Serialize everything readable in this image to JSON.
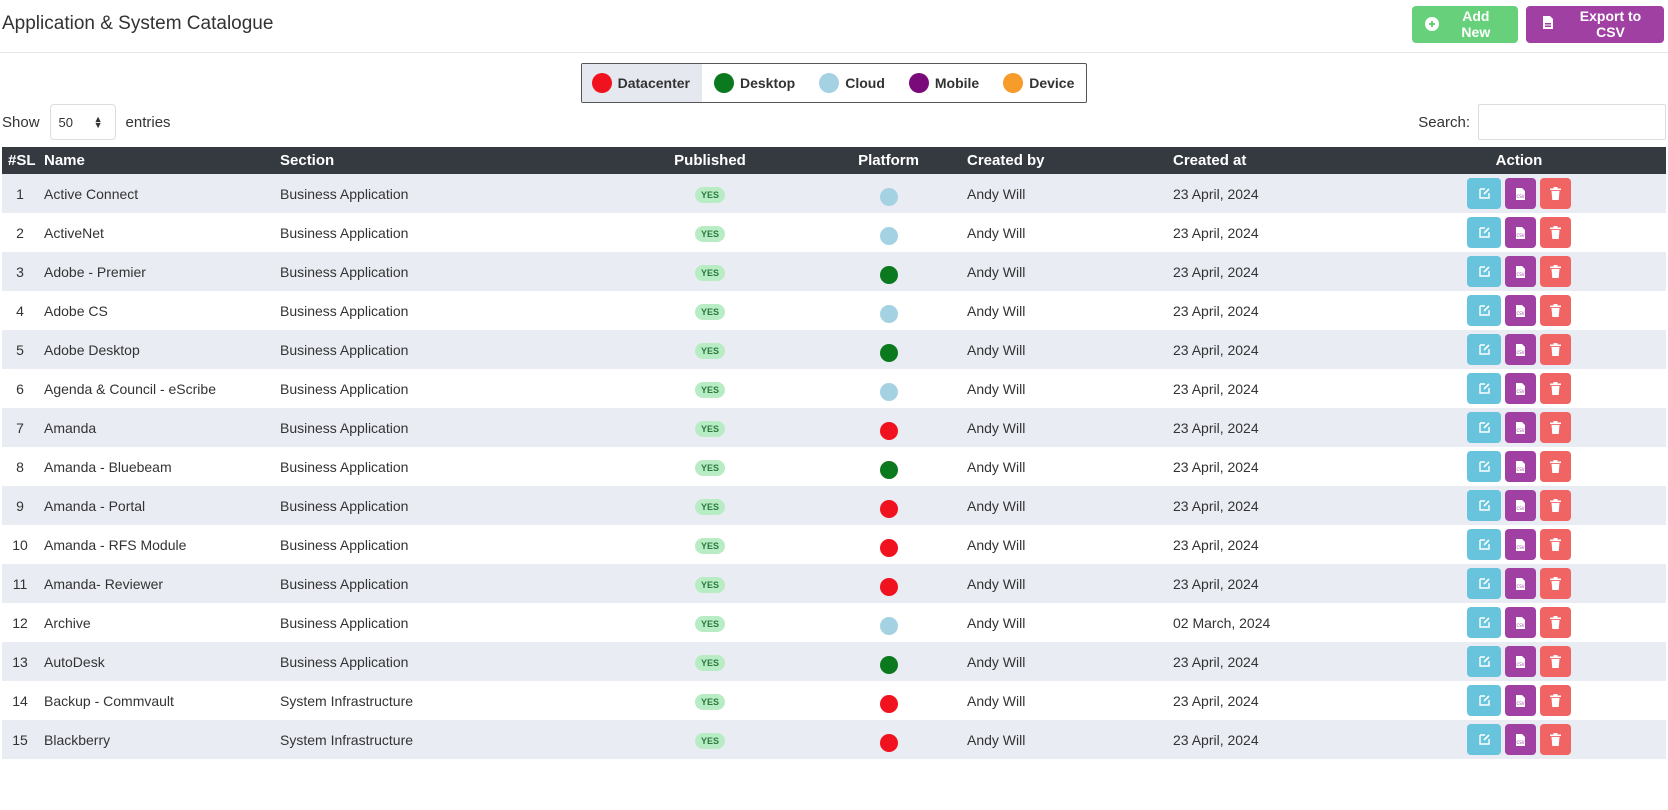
{
  "header": {
    "title": "Application & System Catalogue",
    "add_label": "Add New",
    "export_label": "Export to CSV",
    "add_color": "#66d17a",
    "export_color": "#a040a3"
  },
  "legend": [
    {
      "label": "Datacenter",
      "color": "#f0121f",
      "active": true
    },
    {
      "label": "Desktop",
      "color": "#0b7a1f",
      "active": false
    },
    {
      "label": "Cloud",
      "color": "#a4d2e2",
      "active": false
    },
    {
      "label": "Mobile",
      "color": "#7a0a7a",
      "active": false
    },
    {
      "label": "Device",
      "color": "#f79b2b",
      "active": false
    }
  ],
  "controls": {
    "show_label": "Show",
    "entries_value": "50",
    "entries_label": "entries",
    "search_label": "Search:",
    "search_value": ""
  },
  "table": {
    "headers": [
      "#SL",
      "Name",
      "Section",
      "Published",
      "Platform",
      "Created by",
      "Created at",
      "Action"
    ],
    "rows": [
      {
        "sl": "1",
        "name": "Active Connect",
        "section": "Business Application",
        "published": "YES",
        "platform": "Cloud",
        "created_by": "Andy Will",
        "created_at": "23 April, 2024"
      },
      {
        "sl": "2",
        "name": "ActiveNet",
        "section": "Business Application",
        "published": "YES",
        "platform": "Cloud",
        "created_by": "Andy Will",
        "created_at": "23 April, 2024"
      },
      {
        "sl": "3",
        "name": "Adobe - Premier",
        "section": "Business Application",
        "published": "YES",
        "platform": "Desktop",
        "created_by": "Andy Will",
        "created_at": "23 April, 2024"
      },
      {
        "sl": "4",
        "name": "Adobe CS",
        "section": "Business Application",
        "published": "YES",
        "platform": "Cloud",
        "created_by": "Andy Will",
        "created_at": "23 April, 2024"
      },
      {
        "sl": "5",
        "name": "Adobe Desktop",
        "section": "Business Application",
        "published": "YES",
        "platform": "Desktop",
        "created_by": "Andy Will",
        "created_at": "23 April, 2024"
      },
      {
        "sl": "6",
        "name": "Agenda & Council - eScribe",
        "section": "Business Application",
        "published": "YES",
        "platform": "Cloud",
        "created_by": "Andy Will",
        "created_at": "23 April, 2024"
      },
      {
        "sl": "7",
        "name": "Amanda",
        "section": "Business Application",
        "published": "YES",
        "platform": "Datacenter",
        "created_by": "Andy Will",
        "created_at": "23 April, 2024"
      },
      {
        "sl": "8",
        "name": "Amanda - Bluebeam",
        "section": "Business Application",
        "published": "YES",
        "platform": "Desktop",
        "created_by": "Andy Will",
        "created_at": "23 April, 2024"
      },
      {
        "sl": "9",
        "name": "Amanda - Portal",
        "section": "Business Application",
        "published": "YES",
        "platform": "Datacenter",
        "created_by": "Andy Will",
        "created_at": "23 April, 2024"
      },
      {
        "sl": "10",
        "name": "Amanda - RFS Module",
        "section": "Business Application",
        "published": "YES",
        "platform": "Datacenter",
        "created_by": "Andy Will",
        "created_at": "23 April, 2024"
      },
      {
        "sl": "11",
        "name": "Amanda- Reviewer",
        "section": "Business Application",
        "published": "YES",
        "platform": "Datacenter",
        "created_by": "Andy Will",
        "created_at": "23 April, 2024"
      },
      {
        "sl": "12",
        "name": "Archive",
        "section": "Business Application",
        "published": "YES",
        "platform": "Cloud",
        "created_by": "Andy Will",
        "created_at": "02 March, 2024"
      },
      {
        "sl": "13",
        "name": "AutoDesk",
        "section": "Business Application",
        "published": "YES",
        "platform": "Desktop",
        "created_by": "Andy Will",
        "created_at": "23 April, 2024"
      },
      {
        "sl": "14",
        "name": "Backup - Commvault",
        "section": "System Infrastructure",
        "published": "YES",
        "platform": "Datacenter",
        "created_by": "Andy Will",
        "created_at": "23 April, 2024"
      },
      {
        "sl": "15",
        "name": "Blackberry",
        "section": "System Infrastructure",
        "published": "YES",
        "platform": "Datacenter",
        "created_by": "Andy Will",
        "created_at": "23 April, 2024"
      }
    ]
  },
  "icons": {
    "add": "plus-circle-icon",
    "export": "csv-file-icon",
    "edit": "edit-icon",
    "csv": "csv-file-icon",
    "delete": "trash-icon"
  }
}
